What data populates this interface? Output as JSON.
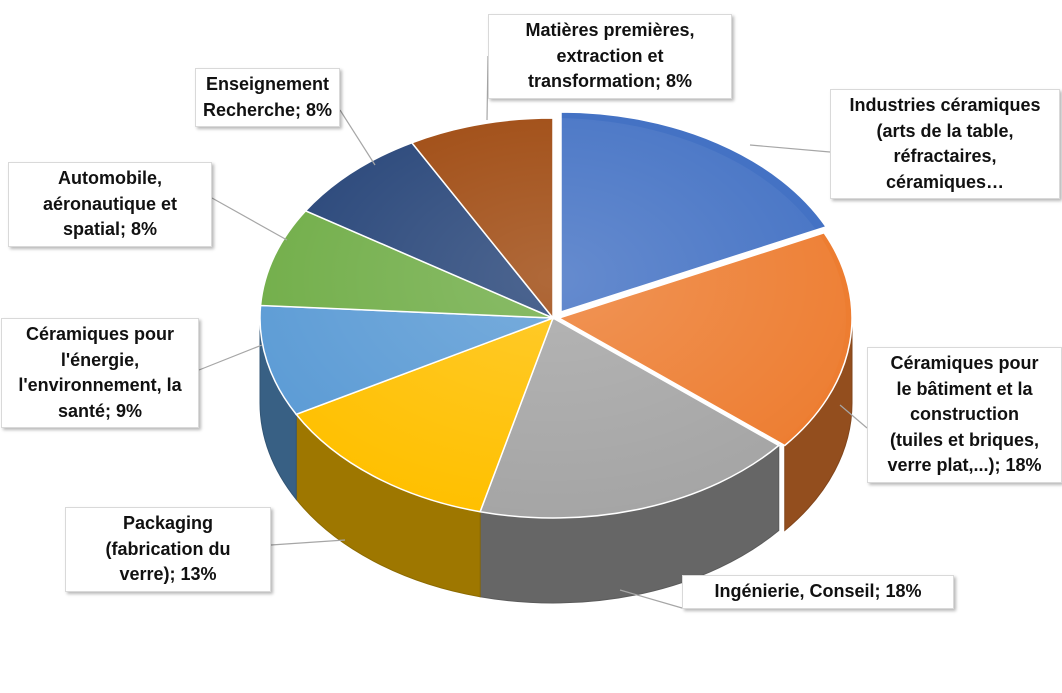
{
  "chart_data": {
    "type": "pie",
    "style": "3d-exploded",
    "slices": [
      {
        "label": "Industries céramiques (arts de la table, réfractaires, céramiques…",
        "value": null,
        "color": "#4472C4",
        "label_lines": [
          "Industries céramiques",
          "(arts de la table,",
          "réfractaires,",
          "céramiques…"
        ]
      },
      {
        "label": "Céramiques pour le bâtiment et la construction (tuiles et briques, verre plat,...)",
        "value": 18,
        "color": "#ED7D31",
        "label_lines": [
          "Céramiques pour",
          "le bâtiment et la",
          "construction",
          "(tuiles et briques,",
          "verre plat,...); 18%"
        ]
      },
      {
        "label": "Ingénierie, Conseil",
        "value": 18,
        "color": "#A5A5A5",
        "label_lines": [
          "Ingénierie, Conseil; 18%"
        ]
      },
      {
        "label": "Packaging (fabrication du verre)",
        "value": 13,
        "color": "#FFC000",
        "label_lines": [
          "Packaging",
          "(fabrication du",
          "verre); 13%"
        ]
      },
      {
        "label": "Céramiques pour l'énergie, l'environnement, la santé",
        "value": 9,
        "color": "#5B9BD5",
        "label_lines": [
          "Céramiques pour",
          "l'énergie,",
          "l'environnement, la",
          "santé; 9%"
        ]
      },
      {
        "label": "Automobile, aéronautique et spatial",
        "value": 8,
        "color": "#70AD47",
        "label_lines": [
          "Automobile,",
          "aéronautique et",
          "spatial; 8%"
        ]
      },
      {
        "label": "Enseignement Recherche",
        "value": 8,
        "color": "#264478",
        "label_lines": [
          "Enseignement",
          "Recherche; 8%"
        ]
      },
      {
        "label": "Matières premières, extraction et transformation",
        "value": 8,
        "color": "#9E480E",
        "label_lines": [
          "Matières premières,",
          "extraction et",
          "transformation; 8%"
        ]
      }
    ]
  }
}
